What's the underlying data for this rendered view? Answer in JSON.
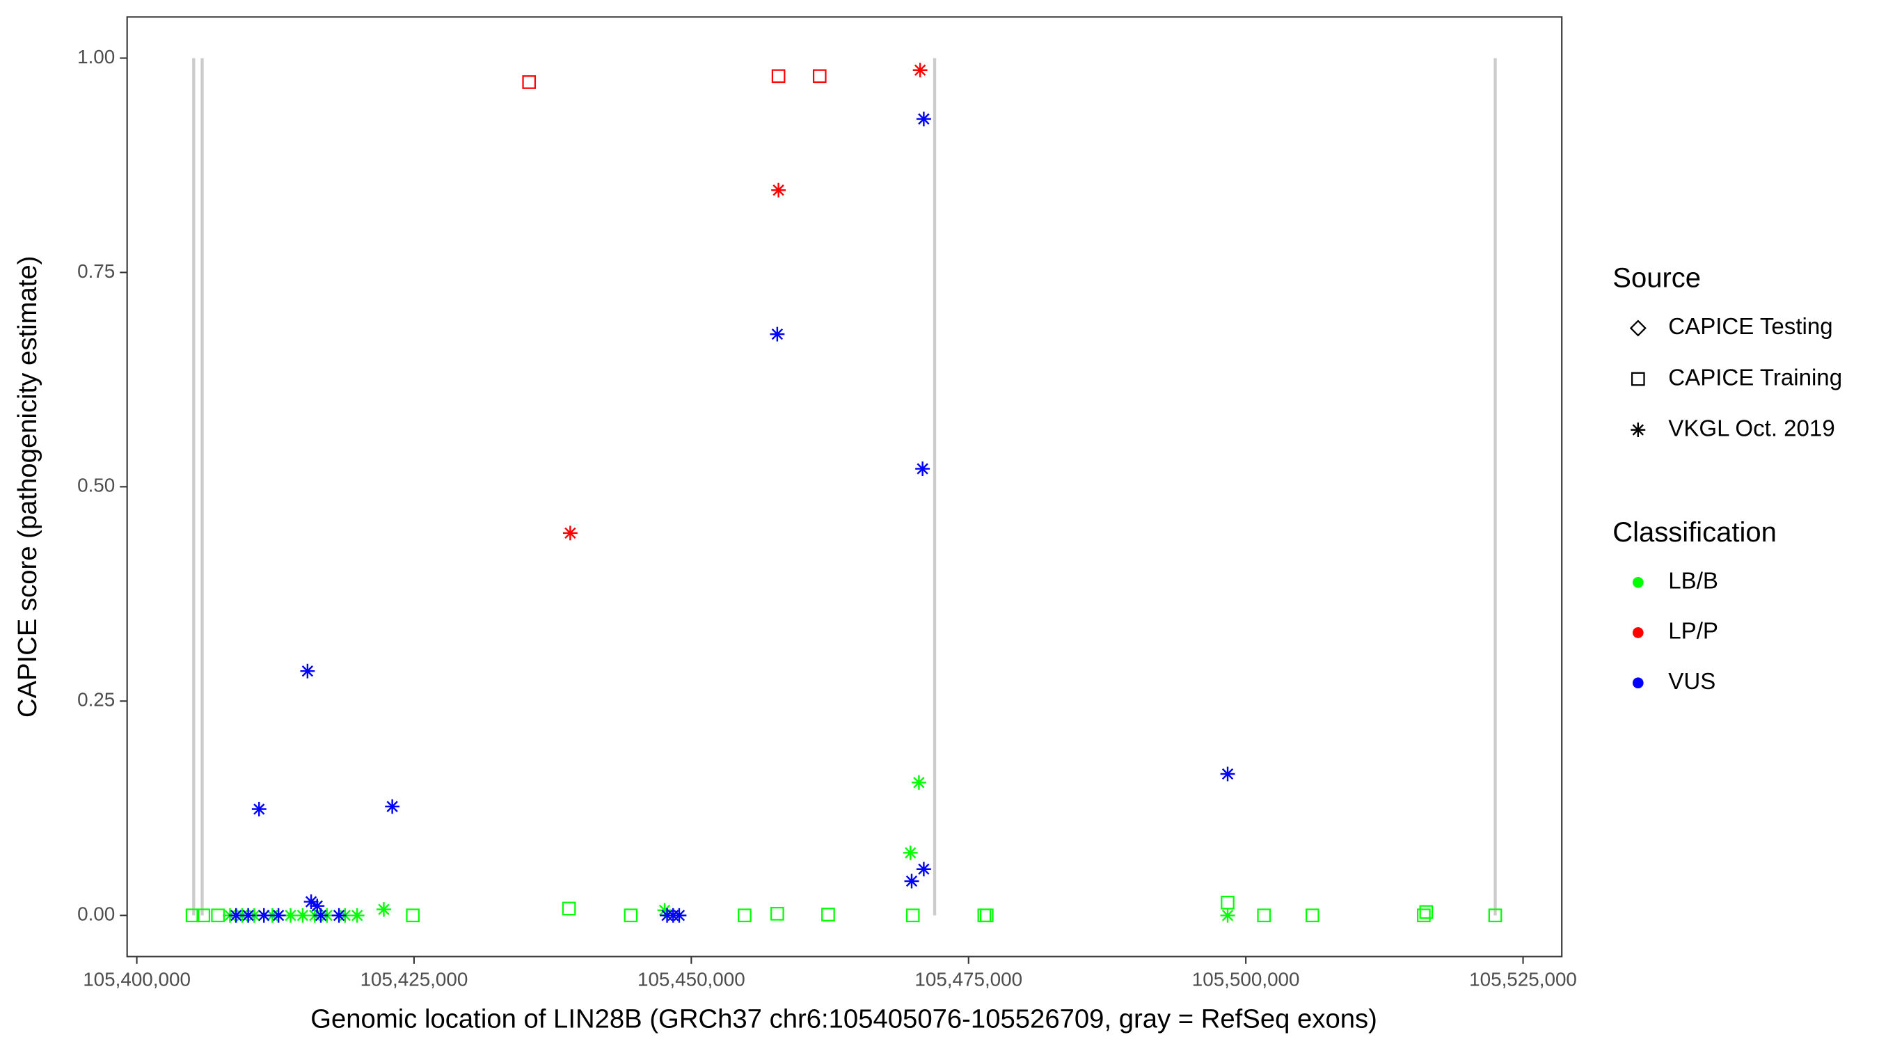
{
  "chart_data": {
    "type": "scatter",
    "x_label": "Genomic location of LIN28B (GRCh37 chr6:105405076-105526709, gray = RefSeq exons)",
    "y_label": "CAPICE score (pathogenicity estimate)",
    "xlim": [
      105399127,
      105528493
    ],
    "ylim": [
      -0.048,
      1.048
    ],
    "xticks": [
      {
        "value": 105400000,
        "label": "105,400,000"
      },
      {
        "value": 105425000,
        "label": "105,425,000"
      },
      {
        "value": 105450000,
        "label": "105,450,000"
      },
      {
        "value": 105475000,
        "label": "105,475,000"
      },
      {
        "value": 105500000,
        "label": "105,500,000"
      },
      {
        "value": 105525000,
        "label": "105,525,000"
      }
    ],
    "yticks": [
      {
        "value": 0,
        "label": "0.00"
      },
      {
        "value": 0.25,
        "label": "0.25"
      },
      {
        "value": 0.5,
        "label": "0.50"
      },
      {
        "value": 0.75,
        "label": "0.75"
      },
      {
        "value": 1,
        "label": "1.00"
      }
    ],
    "exons": [
      105405131,
      105405895,
      105471943,
      105522489
    ],
    "exon_color": "#cccccc",
    "source_title": "Source",
    "sources": [
      {
        "name": "CAPICE Testing",
        "shape": "diamond"
      },
      {
        "name": "CAPICE Training",
        "shape": "square"
      },
      {
        "name": "VKGL Oct. 2019",
        "shape": "asterisk"
      }
    ],
    "classification_title": "Classification",
    "classes": [
      {
        "name": "LB/B",
        "color": "#00ff00"
      },
      {
        "name": "LP/P",
        "color": "#ff0000"
      },
      {
        "name": "VUS",
        "color": "#0000ff"
      }
    ],
    "series": [
      {
        "source": "CAPICE Training",
        "classification": "LB/B",
        "x": [
          105405022,
          105406004,
          105407314,
          105424891,
          105438974,
          105444541,
          105454803,
          105457751,
          105462336,
          105469978,
          105476419,
          105476638,
          105498362,
          105501638,
          105506004,
          105516048,
          105516266,
          105522489
        ],
        "values": [
          0,
          0,
          0,
          0,
          0.008,
          0,
          0,
          0.002,
          0.001,
          0,
          0,
          0,
          0.015,
          0,
          0,
          0,
          0.004,
          0
        ]
      },
      {
        "source": "VKGL Oct. 2019",
        "classification": "LB/B",
        "x": [
          105470524,
          105469760,
          105422271,
          105498362,
          105447598,
          105408406,
          105409498,
          105410590,
          105412227,
          105413865,
          105414956,
          105416048,
          105417140,
          105418777,
          105419869
        ],
        "values": [
          0.155,
          0.073,
          0.007,
          0,
          0.006,
          0,
          0,
          0,
          0,
          0,
          0,
          0,
          0,
          0,
          0
        ]
      },
      {
        "source": "CAPICE Training",
        "classification": "LP/P",
        "x": [
          105435371,
          105457860,
          105461572
        ],
        "values": [
          0.972,
          0.979,
          0.979
        ]
      },
      {
        "source": "VKGL Oct. 2019",
        "classification": "LP/P",
        "x": [
          105470633,
          105457860,
          105439083
        ],
        "values": [
          0.986,
          0.846,
          0.446
        ]
      },
      {
        "source": "VKGL Oct. 2019",
        "classification": "VUS",
        "x": [
          105470961,
          105457751,
          105470852,
          105415393,
          105411026,
          105423035,
          105498362,
          105469869,
          105470961,
          105415721,
          105416266,
          105408952,
          105410044,
          105411463,
          105412773,
          105416594,
          105418231,
          105447817,
          105448362,
          105448908
        ],
        "values": [
          0.929,
          0.678,
          0.521,
          0.285,
          0.124,
          0.127,
          0.165,
          0.04,
          0.054,
          0.016,
          0.011,
          0,
          0,
          0,
          0,
          0,
          0,
          0,
          0,
          0
        ]
      }
    ]
  }
}
